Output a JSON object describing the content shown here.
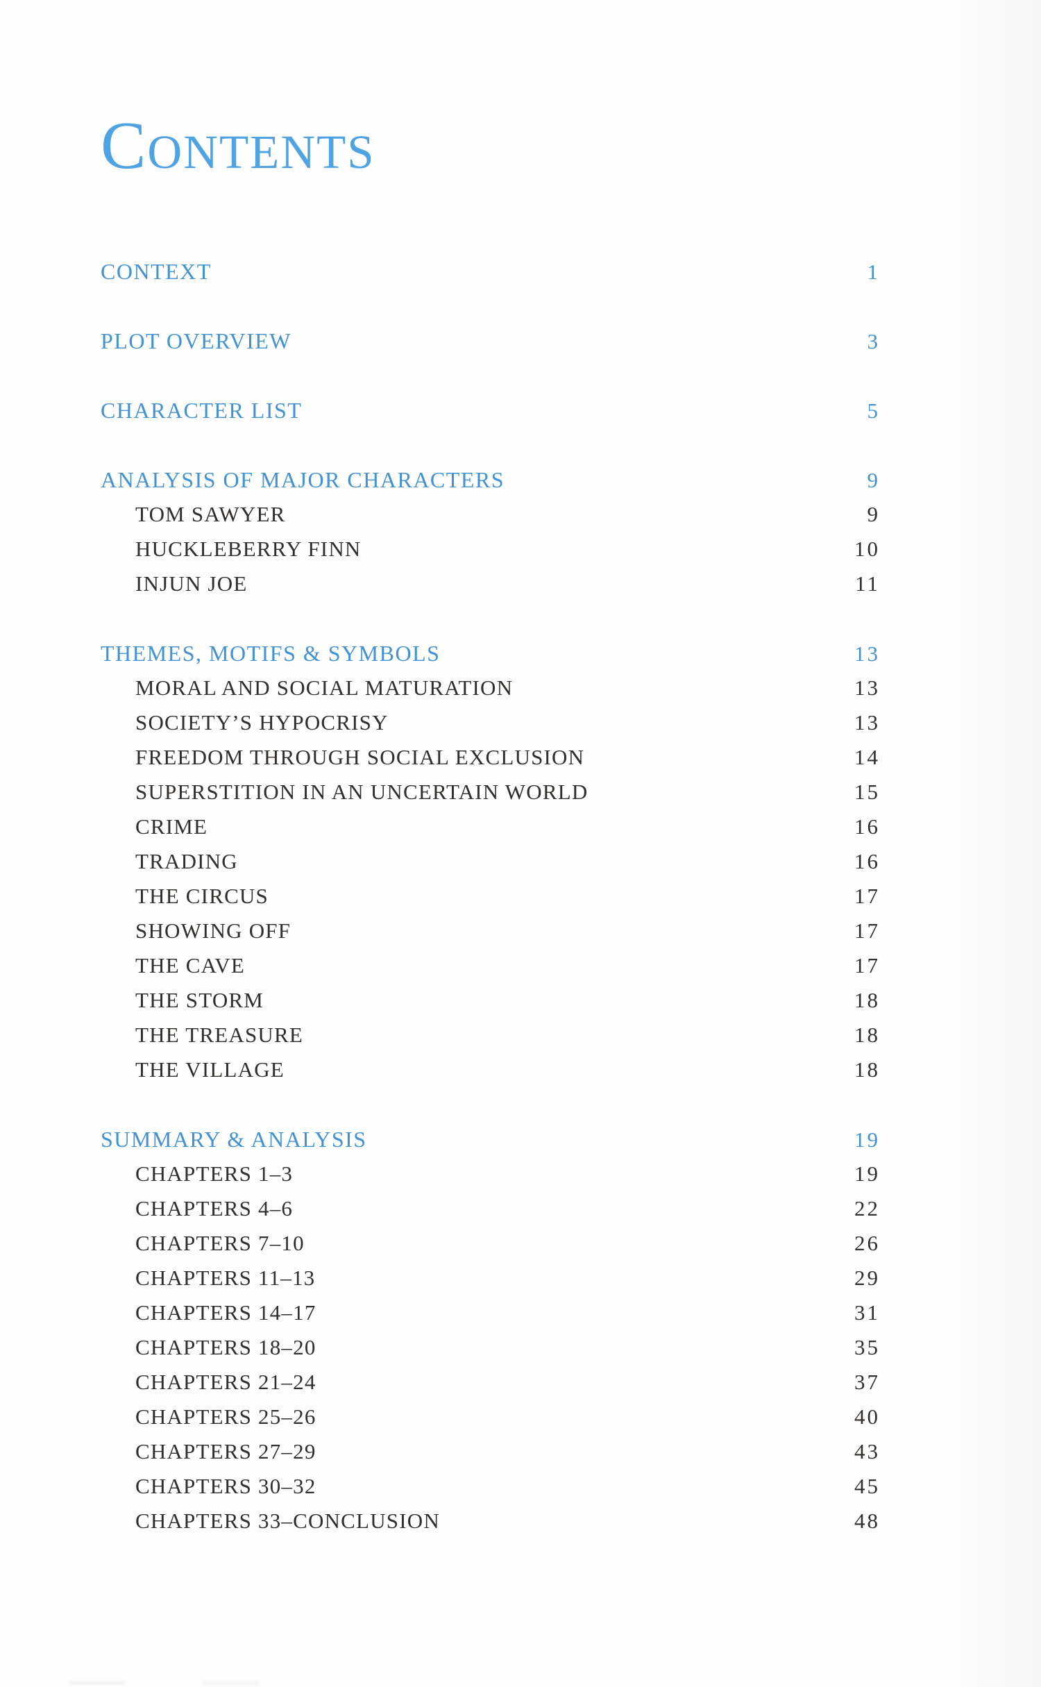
{
  "page": {
    "title": "Contents"
  },
  "colors": {
    "title_blue": "#4fa3e3",
    "section_blue": "#4292d4",
    "body_ink": "#312e2b",
    "background": "#fefefe"
  },
  "toc": {
    "groups": [
      {
        "header": {
          "label": "CONTEXT",
          "page": "1"
        },
        "children": []
      },
      {
        "header": {
          "label": "PLOT OVERVIEW",
          "page": "3"
        },
        "children": []
      },
      {
        "header": {
          "label": "CHARACTER LIST",
          "page": "5"
        },
        "children": []
      },
      {
        "header": {
          "label": "ANALYSIS OF MAJOR CHARACTERS",
          "page": "9"
        },
        "children": [
          {
            "label": "TOM SAWYER",
            "page": "9"
          },
          {
            "label": "HUCKLEBERRY FINN",
            "page": "10"
          },
          {
            "label": "INJUN JOE",
            "page": "11"
          }
        ]
      },
      {
        "header": {
          "label": "THEMES, MOTIFS & SYMBOLS",
          "page": "13"
        },
        "children": [
          {
            "label": "MORAL AND SOCIAL MATURATION",
            "page": "13"
          },
          {
            "label": "SOCIETY’S HYPOCRISY",
            "page": "13"
          },
          {
            "label": "FREEDOM THROUGH SOCIAL EXCLUSION",
            "page": "14"
          },
          {
            "label": "SUPERSTITION IN AN UNCERTAIN WORLD",
            "page": "15"
          },
          {
            "label": "CRIME",
            "page": "16"
          },
          {
            "label": "TRADING",
            "page": "16"
          },
          {
            "label": "THE CIRCUS",
            "page": "17"
          },
          {
            "label": "SHOWING OFF",
            "page": "17"
          },
          {
            "label": "THE CAVE",
            "page": "17"
          },
          {
            "label": "THE STORM",
            "page": "18"
          },
          {
            "label": "THE TREASURE",
            "page": "18"
          },
          {
            "label": "THE VILLAGE",
            "page": "18"
          }
        ]
      },
      {
        "header": {
          "label": "SUMMARY & ANALYSIS",
          "page": "19"
        },
        "children": [
          {
            "label": "CHAPTERS 1–3",
            "page": "19"
          },
          {
            "label": "CHAPTERS 4–6",
            "page": "22"
          },
          {
            "label": "CHAPTERS 7–10",
            "page": "26"
          },
          {
            "label": "CHAPTERS 11–13",
            "page": "29"
          },
          {
            "label": "CHAPTERS 14–17",
            "page": "31"
          },
          {
            "label": "CHAPTERS 18–20",
            "page": "35"
          },
          {
            "label": "CHAPTERS 21–24",
            "page": "37"
          },
          {
            "label": "CHAPTERS 25–26",
            "page": "40"
          },
          {
            "label": "CHAPTERS 27–29",
            "page": "43"
          },
          {
            "label": "CHAPTERS 30–32",
            "page": "45"
          },
          {
            "label": "CHAPTERS 33–CONCLUSION",
            "page": "48"
          }
        ]
      }
    ]
  }
}
